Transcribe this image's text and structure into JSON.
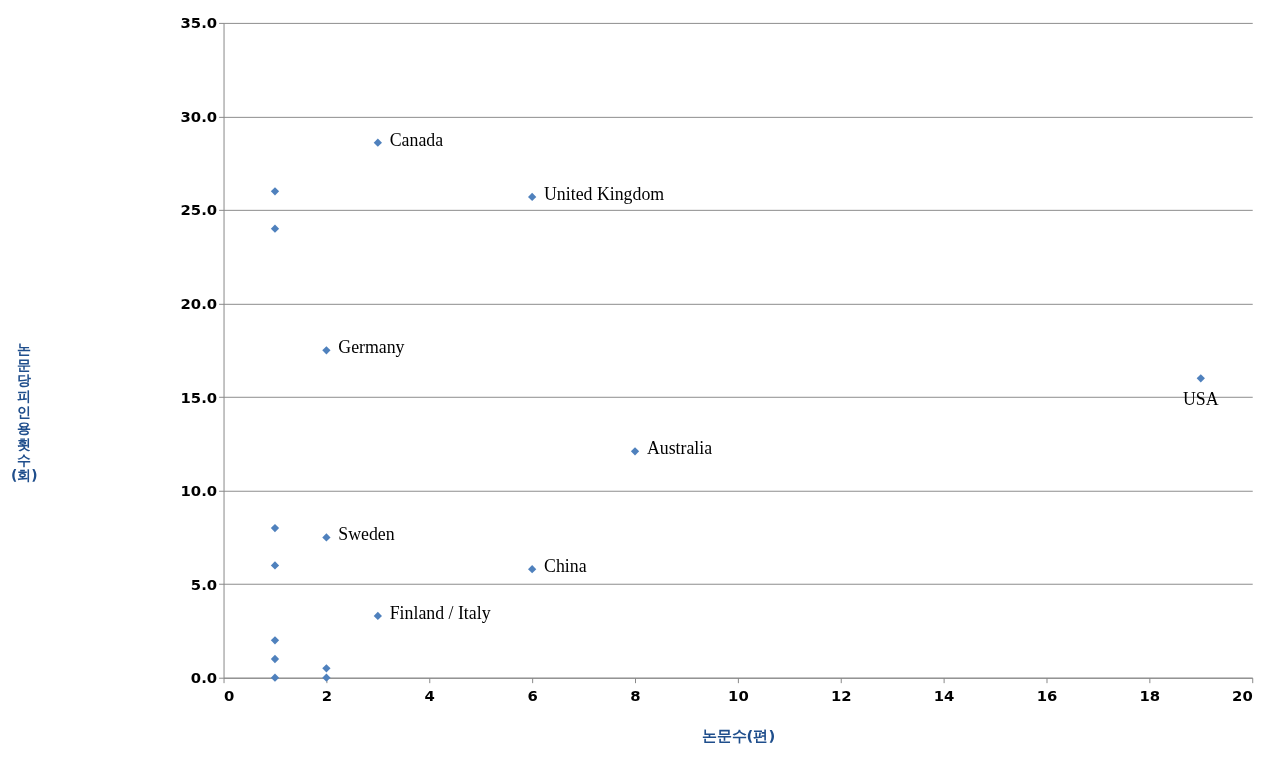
{
  "chart_data": {
    "type": "scatter",
    "xlabel": "논문수(편)",
    "ylabel": "논문당피인용횟수(회)",
    "x": [
      1,
      1,
      3,
      6,
      2,
      19,
      8,
      1,
      2,
      1,
      6,
      3,
      1,
      1,
      1,
      2,
      2
    ],
    "series": [
      {
        "color": "#4f81bd",
        "values": [
          26,
          24,
          28.6,
          25.7,
          17.5,
          16,
          12.1,
          8,
          7.5,
          6,
          5.8,
          3.3,
          2,
          1,
          0,
          0.5,
          0
        ]
      }
    ],
    "xlim": [
      0,
      20
    ],
    "xticks": [
      0,
      2,
      4,
      6,
      8,
      10,
      12,
      14,
      16,
      18,
      20
    ],
    "ylim": [
      0,
      35
    ],
    "yticks": [
      {
        "value": 0,
        "label": "0.0"
      },
      {
        "value": 5,
        "label": "5.0"
      },
      {
        "value": 10,
        "label": "10.0"
      },
      {
        "value": 15,
        "label": "15.0"
      },
      {
        "value": 20,
        "label": "20.0"
      },
      {
        "value": 25,
        "label": "25.0"
      },
      {
        "value": 30,
        "label": "30.0"
      },
      {
        "value": 35,
        "label": "35.0"
      }
    ],
    "grid": "y",
    "marker": "diamond",
    "annotations": [
      {
        "text": "Canada",
        "x": 3,
        "y": 28.6
      },
      {
        "text": "United Kingdom",
        "x": 6,
        "y": 25.7
      },
      {
        "text": "Germany",
        "x": 2,
        "y": 17.5
      },
      {
        "text": "USA",
        "x": 19,
        "y": 16
      },
      {
        "text": "Australia",
        "x": 8,
        "y": 12.1
      },
      {
        "text": "Sweden",
        "x": 2,
        "y": 7.5
      },
      {
        "text": "China",
        "x": 6,
        "y": 5.8
      },
      {
        "text": "Finland / Italy",
        "x": 3,
        "y": 3.3
      }
    ]
  }
}
